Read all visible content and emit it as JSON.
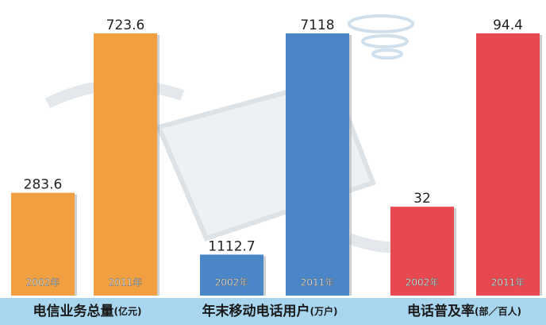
{
  "chart_data": [
    {
      "type": "bar",
      "title": "电信业务总量",
      "unit": "(亿元)",
      "categories": [
        "2002年",
        "2011年"
      ],
      "values": [
        283.6,
        723.6
      ],
      "color": "#f0a040"
    },
    {
      "type": "bar",
      "title": "年末移动电话用户",
      "unit": "(万户)",
      "categories": [
        "2002年",
        "2011年"
      ],
      "values": [
        1112.7,
        7118
      ],
      "color": "#4a86c8"
    },
    {
      "type": "bar",
      "title": "电话普及率",
      "unit": "(部／百人)",
      "categories": [
        "2002年",
        "2011年"
      ],
      "values": [
        32,
        94.4
      ],
      "color": "#e84850"
    }
  ]
}
